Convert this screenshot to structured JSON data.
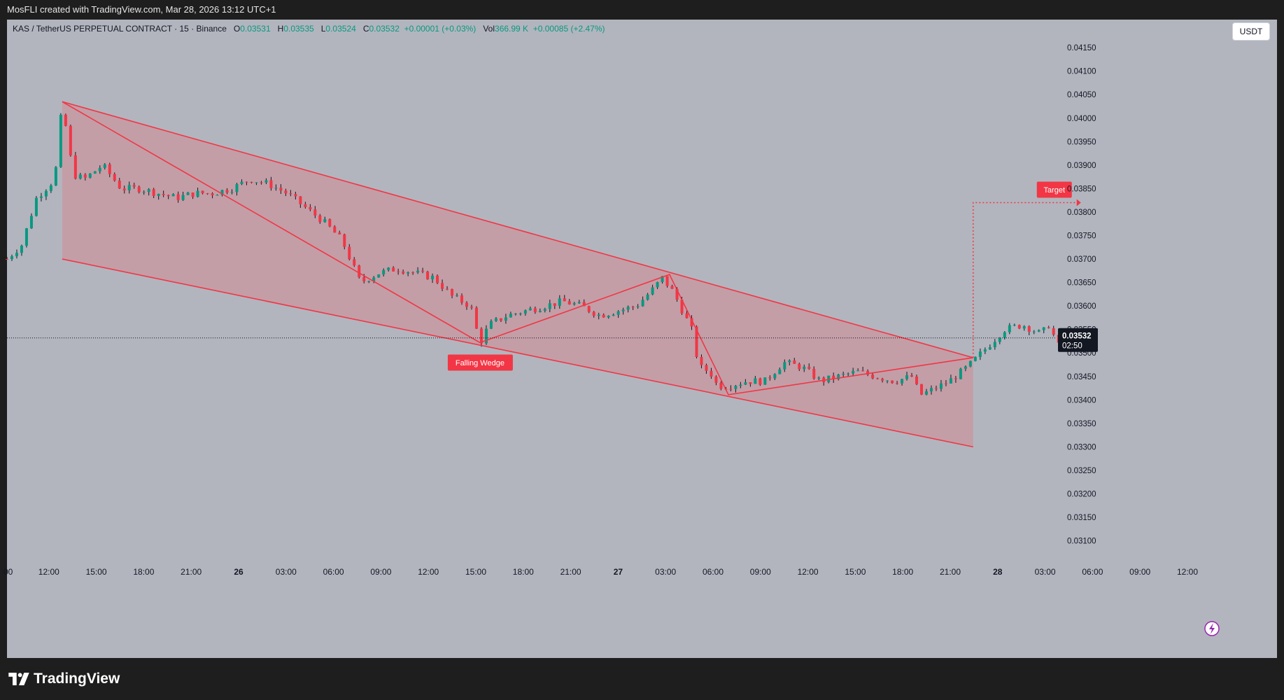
{
  "header": {
    "attribution": "MosFLI created with TradingView.com, Mar 28, 2026 13:12 UTC+1"
  },
  "legend": {
    "symbol": "KAS / TetherUS PERPETUAL CONTRACT · 15 · Binance",
    "o_label": "O",
    "o_value": "0.03531",
    "h_label": "H",
    "h_value": "0.03535",
    "l_label": "L",
    "l_value": "0.03524",
    "c_label": "C",
    "c_value": "0.03532",
    "change": "+0.00001 (+0.03%)",
    "vol_label": "Vol",
    "vol_value": "366.99 K",
    "vol_change": "+0.00085 (+2.47%)"
  },
  "currency_button": "USDT",
  "footer": {
    "brand": "TradingView",
    "logo_icon": "tradingview-logo-icon"
  },
  "chart_data": {
    "type": "candlestick",
    "ylim": [
      0.0308,
      0.0418
    ],
    "y_ticks": [
      "0.04150",
      "0.04100",
      "0.04050",
      "0.04000",
      "0.03950",
      "0.03900",
      "0.03850",
      "0.03800",
      "0.03750",
      "0.03700",
      "0.03650",
      "0.03600",
      "0.03550",
      "0.03500",
      "0.03450",
      "0.03400",
      "0.03350",
      "0.03300",
      "0.03250",
      "0.03200",
      "0.03150",
      "0.03100"
    ],
    "x_ticks": [
      ":00",
      "12:00",
      "15:00",
      "18:00",
      "21:00",
      "26",
      "03:00",
      "06:00",
      "09:00",
      "12:00",
      "15:00",
      "18:00",
      "21:00",
      "27",
      "03:00",
      "06:00",
      "09:00",
      "12:00",
      "15:00",
      "18:00",
      "21:00",
      "28",
      "03:00",
      "06:00",
      "09:00",
      "12:00"
    ],
    "bold_x_ticks": [
      "26",
      "27",
      "28"
    ],
    "last_price": "0.03532",
    "last_price_countdown": "02:50",
    "colors": {
      "up": "#089981",
      "down": "#f23645",
      "pattern": "#f23645",
      "fill": "#c69aa3",
      "background": "#b2b5be"
    },
    "price_path": [
      [
        0,
        0.037
      ],
      [
        0.8,
        0.0373
      ],
      [
        1.6,
        0.0383
      ],
      [
        2.6,
        0.0387
      ],
      [
        3,
        0.0403
      ],
      [
        3.6,
        0.0388
      ],
      [
        4.2,
        0.0387
      ],
      [
        5.2,
        0.039
      ],
      [
        6.2,
        0.0385
      ],
      [
        7.2,
        0.0385
      ],
      [
        8.2,
        0.0384
      ],
      [
        9.2,
        0.0383
      ],
      [
        10.2,
        0.0384
      ],
      [
        11.2,
        0.0384
      ],
      [
        12.2,
        0.0385
      ],
      [
        13.2,
        0.0387
      ],
      [
        14.2,
        0.0386
      ],
      [
        15.2,
        0.0384
      ],
      [
        16.2,
        0.0381
      ],
      [
        17.2,
        0.0378
      ],
      [
        18.2,
        0.0374
      ],
      [
        19.2,
        0.0365
      ],
      [
        20.2,
        0.0367
      ],
      [
        21.2,
        0.0368
      ],
      [
        22.2,
        0.0367
      ],
      [
        23.2,
        0.0366
      ],
      [
        24.2,
        0.0362
      ],
      [
        25.2,
        0.036
      ],
      [
        25.7,
        0.0352
      ],
      [
        26.2,
        0.0356
      ],
      [
        27.2,
        0.0358
      ],
      [
        28.2,
        0.0359
      ],
      [
        29.2,
        0.036
      ],
      [
        30.2,
        0.0361
      ],
      [
        31.2,
        0.036
      ],
      [
        32.2,
        0.0358
      ],
      [
        33.2,
        0.0359
      ],
      [
        34.2,
        0.036
      ],
      [
        35.2,
        0.0364
      ],
      [
        35.6,
        0.0366
      ],
      [
        36.2,
        0.0363
      ],
      [
        37.2,
        0.0355
      ],
      [
        37.6,
        0.0347
      ],
      [
        38.2,
        0.0346
      ],
      [
        38.6,
        0.0343
      ],
      [
        39.2,
        0.0343
      ],
      [
        40.2,
        0.0344
      ],
      [
        41.2,
        0.0344
      ],
      [
        42.2,
        0.0348
      ],
      [
        43.2,
        0.0347
      ],
      [
        44.2,
        0.0344
      ],
      [
        45.2,
        0.0345
      ],
      [
        46.2,
        0.0346
      ],
      [
        47.2,
        0.0345
      ],
      [
        48.2,
        0.0344
      ],
      [
        49.2,
        0.0345
      ],
      [
        49.6,
        0.0341
      ],
      [
        50.2,
        0.0342
      ],
      [
        51.2,
        0.0344
      ],
      [
        52.2,
        0.0347
      ],
      [
        53.2,
        0.0351
      ],
      [
        54.2,
        0.0355
      ],
      [
        55.2,
        0.0356
      ],
      [
        56.2,
        0.0354
      ],
      [
        56.6,
        0.0356
      ],
      [
        57.2,
        0.0351
      ],
      [
        58.2,
        0.03532
      ]
    ],
    "annotations": [
      {
        "text": "Falling Wedge",
        "type": "label"
      },
      {
        "text": "Target",
        "type": "label",
        "price": 0.0382
      }
    ],
    "wedge": {
      "upper_line": [
        [
          3,
          0.04035
        ],
        [
          52.5,
          0.0349
        ]
      ],
      "lower_line": [
        [
          3,
          0.037
        ],
        [
          52.5,
          0.033
        ]
      ],
      "zigzag": [
        [
          3,
          0.04035
        ],
        [
          25.7,
          0.03522
        ],
        [
          36.0,
          0.03667
        ],
        [
          39.2,
          0.03411
        ],
        [
          52.5,
          0.0349
        ]
      ]
    }
  }
}
